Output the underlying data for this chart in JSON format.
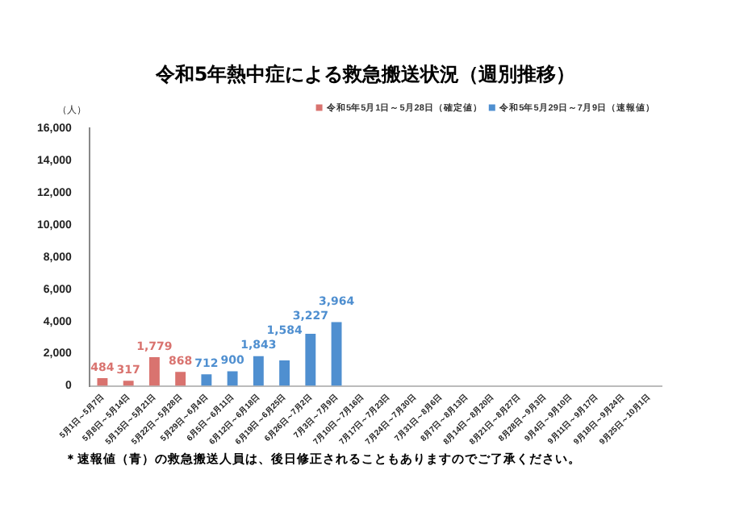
{
  "chart_data": {
    "type": "bar",
    "title": "令和5年熱中症による救急搬送状況（週別推移）",
    "ylabel": "（人）",
    "categories": [
      "5月1日～5月7日",
      "5月8日～5月14日",
      "5月15日～5月21日",
      "5月22日～5月28日",
      "5月29日～6月4日",
      "6月5日～6月11日",
      "6月12日～6月18日",
      "6月19日～6月25日",
      "6月26日～7月2日",
      "7月3日～7月9日",
      "7月10日～7月16日",
      "7月17日～7月23日",
      "7月24日～7月30日",
      "7月31日～8月6日",
      "8月7日～8月13日",
      "8月14日～8月20日",
      "8月21日～8月27日",
      "8月28日～9月3日",
      "9月4日～9月10日",
      "9月11日～9月17日",
      "9月18日～9月24日",
      "9月25日～10月1日"
    ],
    "series": [
      {
        "name": "令和5年5月1日～5月28日（確定値）",
        "color": "#d9736f",
        "values": [
          484,
          317,
          1779,
          868,
          null,
          null,
          null,
          null,
          null,
          null,
          null,
          null,
          null,
          null,
          null,
          null,
          null,
          null,
          null,
          null,
          null,
          null
        ],
        "value_labels": [
          "484",
          "317",
          "1,779",
          "868",
          null,
          null,
          null,
          null,
          null,
          null,
          null,
          null,
          null,
          null,
          null,
          null,
          null,
          null,
          null,
          null,
          null,
          null
        ]
      },
      {
        "name": "令和5年5月29日～7月9日（速報値）",
        "color": "#4f8fd0",
        "values": [
          null,
          null,
          null,
          null,
          712,
          900,
          1843,
          1584,
          3227,
          3964,
          null,
          null,
          null,
          null,
          null,
          null,
          null,
          null,
          null,
          null,
          null,
          null
        ],
        "value_labels": [
          null,
          null,
          null,
          null,
          "712",
          "900",
          "1,843",
          "1,584",
          "3,227",
          "3,964",
          null,
          null,
          null,
          null,
          null,
          null,
          null,
          null,
          null,
          null,
          null,
          null
        ]
      }
    ],
    "ylim": [
      0,
      16000
    ],
    "yticks": [
      {
        "value": 0,
        "label": "0"
      },
      {
        "value": 2000,
        "label": "2,000"
      },
      {
        "value": 4000,
        "label": "4,000"
      },
      {
        "value": 6000,
        "label": "6,000"
      },
      {
        "value": 8000,
        "label": "8,000"
      },
      {
        "value": 10000,
        "label": "10,000"
      },
      {
        "value": 12000,
        "label": "12,000"
      },
      {
        "value": 14000,
        "label": "14,000"
      },
      {
        "value": 16000,
        "label": "16,000"
      }
    ],
    "grid": false,
    "legend": "top right",
    "annotations": [
      "＊速報値（青）の救急搬送人員は、後日修正されることもありますのでご了承ください。"
    ]
  }
}
